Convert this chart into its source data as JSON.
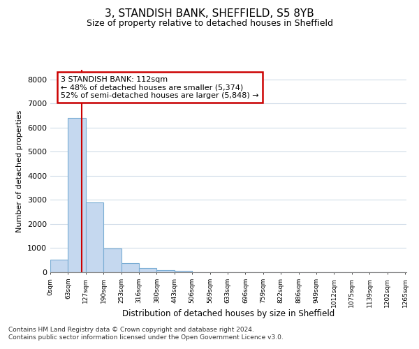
{
  "title": "3, STANDISH BANK, SHEFFIELD, S5 8YB",
  "subtitle": "Size of property relative to detached houses in Sheffield",
  "xlabel": "Distribution of detached houses by size in Sheffield",
  "ylabel": "Number of detached properties",
  "property_size": 112,
  "annotation_line1": "3 STANDISH BANK: 112sqm",
  "annotation_line2": "← 48% of detached houses are smaller (5,374)",
  "annotation_line3": "52% of semi-detached houses are larger (5,848) →",
  "bar_left_edges": [
    0,
    63,
    126,
    189,
    252,
    315,
    378,
    441,
    504,
    567,
    630,
    693,
    756,
    819,
    882,
    945,
    1008,
    1071,
    1134,
    1197
  ],
  "bar_heights": [
    530,
    6400,
    2900,
    975,
    370,
    175,
    100,
    65,
    0,
    0,
    0,
    0,
    0,
    0,
    0,
    0,
    0,
    0,
    0,
    0
  ],
  "bin_width": 63,
  "bar_color": "#c5d8ef",
  "bar_edge_color": "#7aadd4",
  "red_line_color": "#cc0000",
  "annotation_box_color": "#cc0000",
  "ylim": [
    0,
    8400
  ],
  "xlim": [
    0,
    1265
  ],
  "yticks": [
    0,
    1000,
    2000,
    3000,
    4000,
    5000,
    6000,
    7000,
    8000
  ],
  "xtick_labels": [
    "0sqm",
    "63sqm",
    "127sqm",
    "190sqm",
    "253sqm",
    "316sqm",
    "380sqm",
    "443sqm",
    "506sqm",
    "569sqm",
    "633sqm",
    "696sqm",
    "759sqm",
    "822sqm",
    "886sqm",
    "949sqm",
    "1012sqm",
    "1075sqm",
    "1139sqm",
    "1202sqm",
    "1265sqm"
  ],
  "xtick_positions": [
    0,
    63,
    126,
    189,
    252,
    315,
    378,
    441,
    504,
    567,
    630,
    693,
    756,
    819,
    882,
    945,
    1008,
    1071,
    1134,
    1197,
    1260
  ],
  "background_color": "#ffffff",
  "grid_color": "#d0dce8",
  "footer_line1": "Contains HM Land Registry data © Crown copyright and database right 2024.",
  "footer_line2": "Contains public sector information licensed under the Open Government Licence v3.0."
}
